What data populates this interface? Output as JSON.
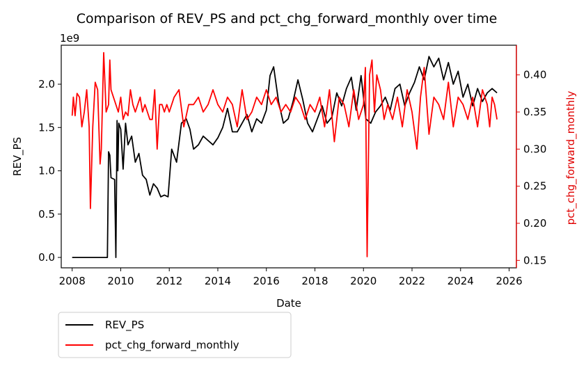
{
  "chart_data": {
    "type": "line",
    "title": "Comparison of REV_PS and pct_chg_forward_monthly over time",
    "xlabel": "Date",
    "ylabel": "REV_PS",
    "y2label": "pct_chg_forward_monthly",
    "y_multiplier": "1e9",
    "x_range": [
      2007.55,
      2026.3
    ],
    "x_ticks": [
      "2008",
      "2010",
      "2012",
      "2014",
      "2016",
      "2018",
      "2020",
      "2022",
      "2024",
      "2026"
    ],
    "y_range": [
      -0.12,
      2.45
    ],
    "y_ticks": [
      "0.0",
      "0.5",
      "1.0",
      "1.5",
      "2.0"
    ],
    "y2_range": [
      0.14,
      0.44
    ],
    "y2_ticks": [
      "0.15",
      "0.20",
      "0.25",
      "0.30",
      "0.35",
      "0.40"
    ],
    "legend_position": "below-left",
    "grid": false,
    "series": [
      {
        "name": "REV_PS",
        "axis": "left",
        "color": "#000000",
        "x": [
          2008.0,
          2009.45,
          2009.5,
          2009.55,
          2009.6,
          2009.75,
          2009.8,
          2009.85,
          2009.88,
          2009.92,
          2010.0,
          2010.1,
          2010.2,
          2010.3,
          2010.45,
          2010.6,
          2010.75,
          2010.9,
          2011.05,
          2011.2,
          2011.35,
          2011.5,
          2011.65,
          2011.8,
          2011.95,
          2012.1,
          2012.3,
          2012.5,
          2012.7,
          2012.85,
          2013.0,
          2013.2,
          2013.4,
          2013.6,
          2013.8,
          2014.0,
          2014.2,
          2014.4,
          2014.6,
          2014.8,
          2015.0,
          2015.2,
          2015.4,
          2015.6,
          2015.8,
          2016.0,
          2016.15,
          2016.3,
          2016.5,
          2016.7,
          2016.9,
          2017.1,
          2017.3,
          2017.5,
          2017.7,
          2017.9,
          2018.1,
          2018.3,
          2018.5,
          2018.7,
          2018.9,
          2019.1,
          2019.3,
          2019.5,
          2019.7,
          2019.9,
          2020.1,
          2020.3,
          2020.5,
          2020.7,
          2020.9,
          2021.1,
          2021.3,
          2021.5,
          2021.7,
          2021.9,
          2022.1,
          2022.3,
          2022.5,
          2022.7,
          2022.9,
          2023.1,
          2023.3,
          2023.5,
          2023.7,
          2023.9,
          2024.1,
          2024.3,
          2024.5,
          2024.7,
          2024.9,
          2025.1,
          2025.3,
          2025.5
        ],
        "values": [
          0.0,
          0.0,
          1.22,
          1.18,
          0.92,
          0.9,
          0.0,
          1.58,
          1.0,
          1.55,
          1.48,
          1.02,
          1.55,
          1.3,
          1.4,
          1.1,
          1.2,
          0.95,
          0.9,
          0.72,
          0.85,
          0.8,
          0.7,
          0.72,
          0.7,
          1.25,
          1.1,
          1.55,
          1.6,
          1.48,
          1.25,
          1.3,
          1.4,
          1.35,
          1.3,
          1.38,
          1.5,
          1.72,
          1.45,
          1.45,
          1.55,
          1.65,
          1.45,
          1.6,
          1.55,
          1.7,
          2.1,
          2.2,
          1.8,
          1.55,
          1.6,
          1.8,
          2.05,
          1.82,
          1.55,
          1.45,
          1.6,
          1.75,
          1.55,
          1.62,
          1.9,
          1.75,
          1.95,
          2.08,
          1.7,
          2.1,
          1.6,
          1.55,
          1.68,
          1.75,
          1.85,
          1.7,
          1.95,
          2.0,
          1.75,
          1.9,
          2.02,
          2.2,
          2.05,
          2.32,
          2.2,
          2.3,
          2.05,
          2.25,
          2.0,
          2.15,
          1.85,
          2.0,
          1.75,
          1.95,
          1.8,
          1.9,
          1.95,
          1.9
        ]
      },
      {
        "name": "pct_chg_forward_monthly",
        "axis": "right",
        "color": "#ff0000",
        "x": [
          2008.0,
          2008.05,
          2008.12,
          2008.2,
          2008.3,
          2008.4,
          2008.5,
          2008.6,
          2008.7,
          2008.75,
          2008.85,
          2008.95,
          2009.05,
          2009.15,
          2009.2,
          2009.3,
          2009.4,
          2009.5,
          2009.55,
          2009.6,
          2009.7,
          2009.8,
          2009.9,
          2010.0,
          2010.1,
          2010.2,
          2010.3,
          2010.4,
          2010.5,
          2010.6,
          2010.7,
          2010.8,
          2010.9,
          2011.0,
          2011.1,
          2011.2,
          2011.3,
          2011.4,
          2011.5,
          2011.6,
          2011.7,
          2011.8,
          2011.9,
          2012.0,
          2012.2,
          2012.4,
          2012.6,
          2012.8,
          2013.0,
          2013.2,
          2013.4,
          2013.6,
          2013.8,
          2014.0,
          2014.2,
          2014.4,
          2014.6,
          2014.8,
          2015.0,
          2015.2,
          2015.4,
          2015.6,
          2015.8,
          2016.0,
          2016.2,
          2016.4,
          2016.6,
          2016.8,
          2017.0,
          2017.2,
          2017.4,
          2017.6,
          2017.8,
          2018.0,
          2018.2,
          2018.4,
          2018.6,
          2018.8,
          2019.0,
          2019.2,
          2019.4,
          2019.6,
          2019.8,
          2020.0,
          2020.08,
          2020.15,
          2020.25,
          2020.35,
          2020.45,
          2020.55,
          2020.7,
          2020.85,
          2021.0,
          2021.2,
          2021.4,
          2021.6,
          2021.8,
          2022.0,
          2022.2,
          2022.35,
          2022.5,
          2022.7,
          2022.9,
          2023.1,
          2023.3,
          2023.5,
          2023.7,
          2023.9,
          2024.1,
          2024.3,
          2024.5,
          2024.7,
          2024.9,
          2025.1,
          2025.2,
          2025.3,
          2025.4,
          2025.5
        ],
        "values": [
          0.345,
          0.37,
          0.345,
          0.375,
          0.37,
          0.33,
          0.35,
          0.38,
          0.33,
          0.22,
          0.33,
          0.39,
          0.38,
          0.28,
          0.3,
          0.43,
          0.35,
          0.36,
          0.42,
          0.38,
          0.37,
          0.36,
          0.35,
          0.37,
          0.34,
          0.35,
          0.345,
          0.38,
          0.36,
          0.35,
          0.36,
          0.37,
          0.35,
          0.36,
          0.35,
          0.34,
          0.34,
          0.38,
          0.3,
          0.36,
          0.36,
          0.35,
          0.36,
          0.35,
          0.37,
          0.38,
          0.33,
          0.36,
          0.36,
          0.37,
          0.35,
          0.36,
          0.38,
          0.36,
          0.35,
          0.37,
          0.36,
          0.33,
          0.38,
          0.34,
          0.35,
          0.37,
          0.36,
          0.38,
          0.36,
          0.37,
          0.35,
          0.36,
          0.35,
          0.37,
          0.36,
          0.34,
          0.36,
          0.35,
          0.37,
          0.33,
          0.38,
          0.31,
          0.37,
          0.36,
          0.33,
          0.38,
          0.34,
          0.36,
          0.41,
          0.155,
          0.4,
          0.42,
          0.35,
          0.4,
          0.38,
          0.34,
          0.36,
          0.34,
          0.37,
          0.33,
          0.38,
          0.35,
          0.3,
          0.37,
          0.41,
          0.32,
          0.37,
          0.36,
          0.34,
          0.39,
          0.33,
          0.37,
          0.36,
          0.34,
          0.37,
          0.33,
          0.38,
          0.36,
          0.33,
          0.37,
          0.36,
          0.34
        ]
      }
    ]
  }
}
